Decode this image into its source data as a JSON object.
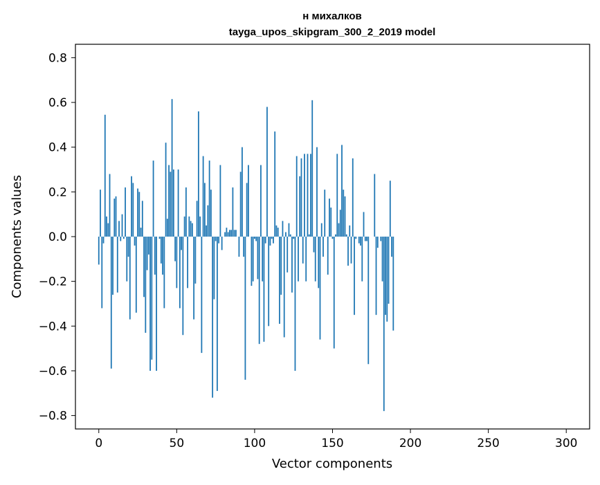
{
  "chart_data": {
    "type": "bar",
    "title": "н михалков",
    "subtitle": "tayga_upos_skipgram_300_2_2019 model",
    "xlabel": "Vector components",
    "ylabel": "Components values",
    "xlim": [
      -15,
      315
    ],
    "ylim": [
      -0.86,
      0.86
    ],
    "xticks": [
      0,
      50,
      100,
      150,
      200,
      250,
      300
    ],
    "yticks": [
      0.8,
      0.6,
      0.4,
      0.2,
      0.0,
      -0.2,
      -0.4,
      -0.6,
      -0.8
    ],
    "ytick_labels": [
      "0.8",
      "0.6",
      "0.4",
      "0.2",
      "0.0",
      "−0.2",
      "−0.4",
      "−0.6",
      "−0.8"
    ],
    "bar_color": "#1f77b4",
    "values": [
      -0.125,
      0.21,
      -0.32,
      -0.03,
      0.545,
      0.09,
      0.06,
      0.28,
      -0.59,
      -0.26,
      0.17,
      0.18,
      -0.25,
      0.07,
      -0.02,
      0.1,
      -0.01,
      0.22,
      -0.2,
      -0.09,
      -0.37,
      0.27,
      0.24,
      -0.04,
      -0.34,
      0.215,
      0.2,
      0.04,
      0.16,
      -0.27,
      -0.43,
      -0.15,
      -0.08,
      -0.6,
      -0.55,
      0.34,
      -0.17,
      -0.6,
      0.0,
      -0.01,
      -0.12,
      -0.17,
      -0.32,
      0.42,
      0.08,
      0.32,
      0.29,
      0.615,
      0.3,
      -0.11,
      -0.23,
      0.3,
      -0.32,
      -0.06,
      -0.44,
      0.09,
      0.22,
      -0.23,
      0.09,
      0.07,
      0.06,
      -0.37,
      -0.21,
      0.16,
      0.56,
      0.09,
      -0.52,
      0.36,
      0.24,
      0.05,
      0.14,
      0.34,
      0.21,
      -0.72,
      -0.28,
      -0.02,
      -0.69,
      -0.03,
      0.32,
      -0.06,
      0.0,
      0.02,
      0.04,
      0.02,
      0.03,
      0.03,
      0.22,
      0.03,
      0.03,
      0.0,
      -0.09,
      0.29,
      0.4,
      -0.09,
      -0.64,
      0.24,
      0.32,
      0.0,
      -0.22,
      -0.2,
      -0.01,
      -0.02,
      -0.19,
      -0.48,
      0.32,
      -0.2,
      -0.47,
      -0.03,
      0.58,
      -0.4,
      -0.04,
      -0.01,
      -0.03,
      0.47,
      0.05,
      0.04,
      -0.39,
      -0.26,
      0.07,
      -0.45,
      0.02,
      -0.16,
      0.06,
      0.01,
      -0.25,
      -0.01,
      -0.6,
      0.36,
      -0.2,
      0.27,
      0.35,
      -0.12,
      0.37,
      -0.2,
      0.37,
      0.01,
      0.37,
      0.61,
      -0.07,
      -0.2,
      0.4,
      -0.23,
      -0.46,
      0.06,
      -0.09,
      0.21,
      0.0,
      -0.17,
      0.17,
      0.13,
      -0.01,
      -0.5,
      0.01,
      0.37,
      0.06,
      0.12,
      0.41,
      0.21,
      0.18,
      0.01,
      -0.13,
      0.05,
      -0.12,
      0.35,
      -0.35,
      -0.01,
      0.0,
      -0.03,
      -0.04,
      -0.2,
      0.11,
      -0.02,
      -0.02,
      -0.57,
      0.0,
      0.0,
      0.0,
      0.28,
      -0.35,
      -0.05,
      0.0,
      -0.02,
      -0.2,
      -0.78,
      -0.35,
      -0.38,
      -0.3,
      0.25,
      -0.09,
      -0.42,
      0.0,
      0.0,
      0.0,
      0.0,
      0.0,
      0.0,
      0.0,
      0.0,
      0.0,
      0.0,
      0.0,
      0.0,
      0.0,
      0.0,
      0.0,
      0.0,
      0.0,
      0.0,
      0.0,
      0.0,
      0.0,
      0.0,
      0.0,
      0.0,
      0.0,
      0.0,
      0.0,
      0.0,
      0.0,
      0.0,
      0.0,
      0.0,
      0.0,
      0.0,
      0.0,
      0.0,
      0.0,
      0.0,
      0.0,
      0.0,
      0.0,
      0.0,
      0.0,
      0.0,
      0.0,
      0.0,
      0.0,
      0.0,
      0.0,
      0.0,
      0.0,
      0.0,
      0.0,
      0.0,
      0.0,
      0.0,
      0.0,
      0.0,
      0.0,
      0.0,
      0.0,
      0.0,
      0.0,
      0.0,
      0.0,
      0.0,
      0.0,
      0.0,
      0.0,
      0.0,
      0.0,
      0.0,
      0.0,
      0.0,
      0.0,
      0.0,
      0.0,
      0.0,
      0.0,
      0.0,
      0.0,
      0.0,
      0.0,
      0.0,
      0.0,
      0.0,
      0.0,
      0.0,
      0.0,
      0.0,
      0.0,
      0.0,
      0.0,
      0.0,
      0.0,
      0.0,
      0.0,
      0.0,
      0.0,
      0.0,
      0.0,
      0.0,
      0.0,
      0.0,
      0.0,
      0.0,
      0.0,
      0.0,
      0.0,
      0.0
    ]
  }
}
